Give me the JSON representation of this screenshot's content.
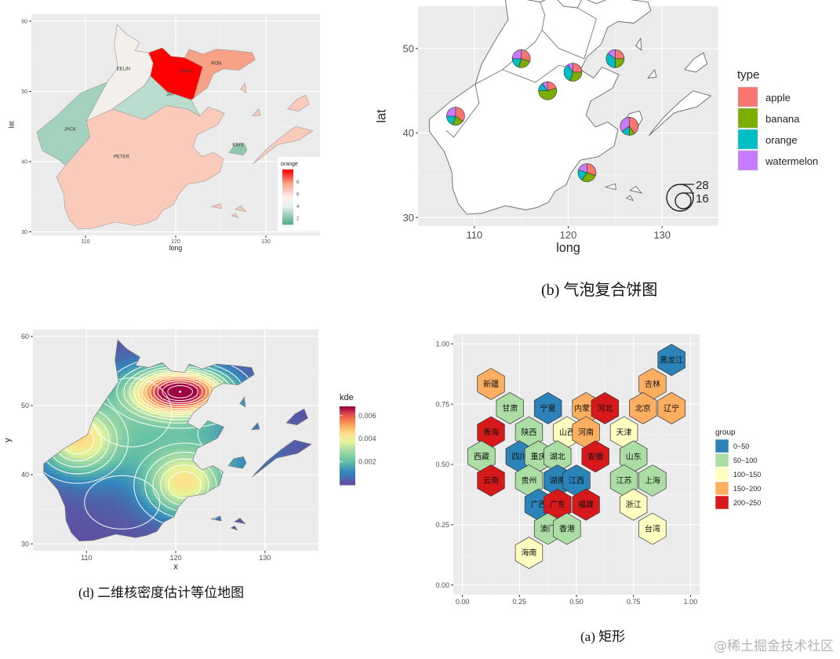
{
  "captions": {
    "b": "(b)  气泡复合饼图",
    "d": "(d)  二维核密度估计等位地图",
    "a": "(a)  矩形"
  },
  "watermark": "@稀土掘金技术社区",
  "colors": {
    "panel_bg": "#ebebeb",
    "grid": "#ffffff",
    "apple": "#f8766d",
    "banana": "#7cae00",
    "orange": "#00bfc4",
    "watermelon": "#c77cff",
    "group_0_50": "#2b83ba",
    "group_50_100": "#abdda4",
    "group_100_150": "#ffffbf",
    "group_150_200": "#fdae61",
    "group_200_250": "#d7191c"
  },
  "chart_data": [
    {
      "id": "top-left",
      "type": "heatmap",
      "subtype": "choropleth",
      "xlabel": "long",
      "ylabel": "lat",
      "xticks": [
        "110",
        "120",
        "130"
      ],
      "yticks": [
        "30",
        "40",
        "50",
        "60"
      ],
      "xlim": [
        104,
        136
      ],
      "ylim": [
        29.5,
        61
      ],
      "legend": {
        "title": "orange",
        "ticks": [
          "2",
          "4",
          "6",
          "8"
        ],
        "range": [
          1,
          10
        ],
        "placement": "right-bottom inside"
      },
      "regions": [
        {
          "name": "JACK",
          "value": 2.5
        },
        {
          "name": "EELIN",
          "value": 4.8
        },
        {
          "name": "JAY",
          "value": 3.0
        },
        {
          "name": "JOHN",
          "value": 10.0
        },
        {
          "name": "RON",
          "value": 7.8
        },
        {
          "name": "PETER",
          "value": 6.6
        },
        {
          "name": "KRIS",
          "value": 2.1
        }
      ]
    },
    {
      "id": "top-right",
      "type": "pie",
      "subtype": "bubble-pie map",
      "xlabel": "long",
      "ylabel": "lat",
      "xticks": [
        "110",
        "120",
        "130"
      ],
      "yticks": [
        "30",
        "40",
        "50"
      ],
      "xlim": [
        104,
        136
      ],
      "ylim": [
        29,
        55
      ],
      "legend": {
        "title": "type",
        "items": [
          "apple",
          "banana",
          "orange",
          "watermelon"
        ],
        "placement": "right"
      },
      "size_legend": {
        "labels": [
          "28",
          "16"
        ]
      },
      "pies": [
        {
          "x": 115,
          "y": 48.8,
          "values": [
            0.3,
            0.25,
            0.2,
            0.25
          ]
        },
        {
          "x": 120.5,
          "y": 47.2,
          "values": [
            0.25,
            0.3,
            0.35,
            0.1
          ]
        },
        {
          "x": 117.8,
          "y": 45.0,
          "values": [
            0.2,
            0.55,
            0.15,
            0.1
          ]
        },
        {
          "x": 125.0,
          "y": 48.8,
          "values": [
            0.25,
            0.25,
            0.35,
            0.15
          ]
        },
        {
          "x": 108.0,
          "y": 42.0,
          "values": [
            0.35,
            0.2,
            0.2,
            0.25
          ]
        },
        {
          "x": 126.5,
          "y": 40.8,
          "values": [
            0.4,
            0.1,
            0.15,
            0.35
          ]
        },
        {
          "x": 122.0,
          "y": 35.3,
          "values": [
            0.3,
            0.3,
            0.2,
            0.2
          ]
        }
      ]
    },
    {
      "id": "bottom-left",
      "type": "heatmap",
      "subtype": "2d kernel density contour map",
      "xlabel": "x",
      "ylabel": "y",
      "xticks": [
        "110",
        "120",
        "130"
      ],
      "yticks": [
        "30",
        "40",
        "50",
        "60"
      ],
      "xlim": [
        104,
        136
      ],
      "ylim": [
        29,
        61
      ],
      "legend": {
        "title": "kde",
        "ticks": [
          "0.002",
          "0.004",
          "0.006"
        ],
        "range": [
          0.0,
          0.0068
        ],
        "placement": "right"
      },
      "peaks": [
        {
          "x": 120.5,
          "y": 52.0,
          "density": 0.0068
        },
        {
          "x": 109.0,
          "y": 45.0,
          "density": 0.0036
        },
        {
          "x": 121.0,
          "y": 38.5,
          "density": 0.0036
        }
      ]
    },
    {
      "id": "bottom-right",
      "type": "heatmap",
      "subtype": "hexagon tile map",
      "xticks": [
        "0.00",
        "0.25",
        "0.50",
        "0.75",
        "1.00"
      ],
      "yticks": [
        "0.00",
        "0.25",
        "0.50",
        "0.75",
        "1.00"
      ],
      "xlim": [
        -0.04,
        1.04
      ],
      "ylim": [
        -0.04,
        1.04
      ],
      "legend": {
        "title": "group",
        "items": [
          "0~50",
          "50~100",
          "100~150",
          "150~200",
          "200~250"
        ],
        "placement": "right"
      },
      "tiles": [
        {
          "name": "黑龙江",
          "x": 0.9167,
          "y": 0.9333,
          "group": "0~50"
        },
        {
          "name": "吉林",
          "x": 0.8333,
          "y": 0.8333,
          "group": "150~200"
        },
        {
          "name": "新疆",
          "x": 0.125,
          "y": 0.8333,
          "group": "150~200"
        },
        {
          "name": "甘肃",
          "x": 0.2083,
          "y": 0.7333,
          "group": "50~100"
        },
        {
          "name": "宁夏",
          "x": 0.375,
          "y": 0.7333,
          "group": "0~50"
        },
        {
          "name": "内蒙古",
          "x": 0.5417,
          "y": 0.7333,
          "group": "150~200"
        },
        {
          "name": "河北",
          "x": 0.625,
          "y": 0.7333,
          "group": "200~250"
        },
        {
          "name": "北京",
          "x": 0.7917,
          "y": 0.7333,
          "group": "150~200"
        },
        {
          "name": "辽宁",
          "x": 0.9167,
          "y": 0.7333,
          "group": "150~200"
        },
        {
          "name": "青海",
          "x": 0.125,
          "y": 0.6333,
          "group": "200~250"
        },
        {
          "name": "陕西",
          "x": 0.2917,
          "y": 0.6333,
          "group": "50~100"
        },
        {
          "name": "山西",
          "x": 0.4583,
          "y": 0.6333,
          "group": "100~150"
        },
        {
          "name": "河南",
          "x": 0.5417,
          "y": 0.6333,
          "group": "150~200"
        },
        {
          "name": "天津",
          "x": 0.7083,
          "y": 0.6333,
          "group": "100~150"
        },
        {
          "name": "西藏",
          "x": 0.0833,
          "y": 0.5333,
          "group": "50~100"
        },
        {
          "name": "四川",
          "x": 0.25,
          "y": 0.5333,
          "group": "0~50"
        },
        {
          "name": "重庆",
          "x": 0.3333,
          "y": 0.5333,
          "group": "50~100"
        },
        {
          "name": "湖北",
          "x": 0.4167,
          "y": 0.5333,
          "group": "50~100"
        },
        {
          "name": "安徽",
          "x": 0.5833,
          "y": 0.5333,
          "group": "200~250"
        },
        {
          "name": "山东",
          "x": 0.75,
          "y": 0.5333,
          "group": "50~100"
        },
        {
          "name": "云南",
          "x": 0.125,
          "y": 0.4333,
          "group": "200~250"
        },
        {
          "name": "贵州",
          "x": 0.2917,
          "y": 0.4333,
          "group": "50~100"
        },
        {
          "name": "湖南",
          "x": 0.4167,
          "y": 0.4333,
          "group": "0~50"
        },
        {
          "name": "江西",
          "x": 0.5,
          "y": 0.4333,
          "group": "0~50"
        },
        {
          "name": "江苏",
          "x": 0.7083,
          "y": 0.4333,
          "group": "50~100"
        },
        {
          "name": "上海",
          "x": 0.8333,
          "y": 0.4333,
          "group": "50~100"
        },
        {
          "name": "广西",
          "x": 0.3333,
          "y": 0.3333,
          "group": "0~50"
        },
        {
          "name": "广东",
          "x": 0.4167,
          "y": 0.3333,
          "group": "200~250"
        },
        {
          "name": "福建",
          "x": 0.5417,
          "y": 0.3333,
          "group": "200~250"
        },
        {
          "name": "浙江",
          "x": 0.75,
          "y": 0.3333,
          "group": "100~150"
        },
        {
          "name": "澳门",
          "x": 0.375,
          "y": 0.2333,
          "group": "50~100"
        },
        {
          "name": "香港",
          "x": 0.4583,
          "y": 0.2333,
          "group": "50~100"
        },
        {
          "name": "台湾",
          "x": 0.8333,
          "y": 0.2333,
          "group": "100~150"
        },
        {
          "name": "海南",
          "x": 0.2917,
          "y": 0.1333,
          "group": "100~150"
        }
      ]
    }
  ]
}
